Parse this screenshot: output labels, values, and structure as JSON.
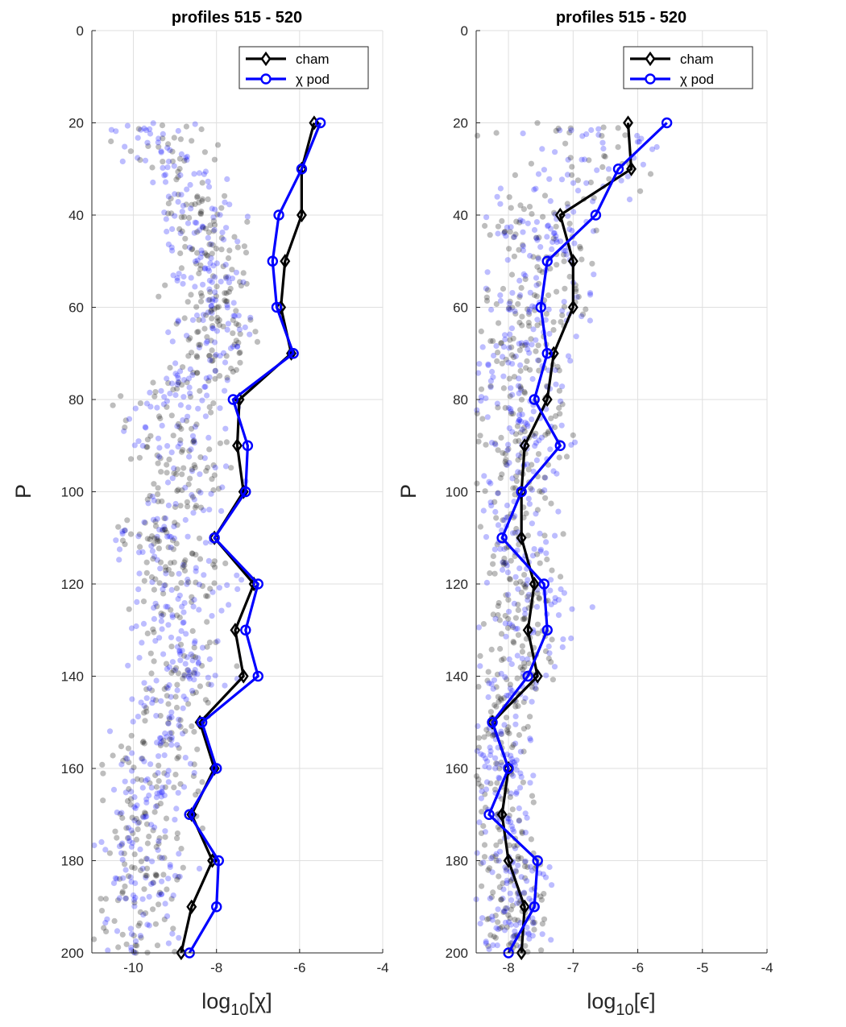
{
  "chart_data": [
    {
      "type": "line",
      "title": "profiles 515 - 520",
      "xlabel": {
        "base": "log",
        "sub": "10",
        "arg": "[χ]"
      },
      "ylabel": "P",
      "xlim": [
        -11,
        -4
      ],
      "ylim": [
        0,
        200
      ],
      "y_reversed": true,
      "grid": true,
      "legend_position": "top-right",
      "xticks": [
        -10,
        -8,
        -6,
        -4
      ],
      "yticks": [
        0,
        20,
        40,
        60,
        80,
        100,
        120,
        140,
        160,
        180,
        200
      ],
      "y": [
        20,
        30,
        40,
        50,
        60,
        70,
        80,
        90,
        100,
        110,
        120,
        130,
        140,
        150,
        160,
        170,
        180,
        190,
        200
      ],
      "series": [
        {
          "name": "cham",
          "color": "#000000",
          "marker": "diamond",
          "x": [
            -5.65,
            -5.95,
            -5.95,
            -6.35,
            -6.45,
            -6.2,
            -7.45,
            -7.5,
            -7.35,
            -8.05,
            -7.1,
            -7.55,
            -7.35,
            -8.4,
            -8.05,
            -8.6,
            -8.1,
            -8.6,
            -8.85
          ]
        },
        {
          "name": "χ pod",
          "color": "#0000ff",
          "marker": "circle",
          "x": [
            -5.5,
            -5.95,
            -6.5,
            -6.65,
            -6.55,
            -6.15,
            -7.6,
            -7.25,
            -7.3,
            -8.05,
            -7.0,
            -7.3,
            -7.0,
            -8.35,
            -8.0,
            -8.65,
            -7.95,
            -8.0,
            -8.65
          ]
        }
      ],
      "scatter_cloud": {
        "note_colors": [
          "#000000",
          "#0000ff"
        ],
        "band": [
          [
            20,
            -9.6,
            1.3
          ],
          [
            30,
            -8.9,
            1.3
          ],
          [
            40,
            -8.4,
            1.2
          ],
          [
            50,
            -8.2,
            1.1
          ],
          [
            60,
            -8.1,
            1.0
          ],
          [
            70,
            -7.9,
            1.0
          ],
          [
            80,
            -9.0,
            1.3
          ],
          [
            90,
            -9.0,
            1.3
          ],
          [
            100,
            -8.6,
            1.1
          ],
          [
            110,
            -9.5,
            1.2
          ],
          [
            120,
            -8.7,
            1.3
          ],
          [
            130,
            -9.0,
            1.1
          ],
          [
            140,
            -8.8,
            1.2
          ],
          [
            150,
            -9.2,
            1.1
          ],
          [
            160,
            -9.4,
            1.2
          ],
          [
            170,
            -9.8,
            1.2
          ],
          [
            180,
            -9.6,
            1.2
          ],
          [
            190,
            -9.9,
            1.1
          ],
          [
            200,
            -9.9,
            1.1
          ]
        ]
      }
    },
    {
      "type": "line",
      "title": "profiles 515 - 520",
      "xlabel": {
        "base": "log",
        "sub": "10",
        "arg": "[ϵ]"
      },
      "ylabel": "P",
      "xlim": [
        -8.5,
        -4
      ],
      "ylim": [
        0,
        200
      ],
      "y_reversed": true,
      "grid": true,
      "legend_position": "top-right",
      "xticks": [
        -8,
        -7,
        -6,
        -5,
        -4
      ],
      "yticks": [
        0,
        20,
        40,
        60,
        80,
        100,
        120,
        140,
        160,
        180,
        200
      ],
      "y": [
        20,
        30,
        40,
        50,
        60,
        70,
        80,
        90,
        100,
        110,
        120,
        130,
        140,
        150,
        160,
        170,
        180,
        190,
        200
      ],
      "series": [
        {
          "name": "cham",
          "color": "#000000",
          "marker": "diamond",
          "x": [
            -6.15,
            -6.1,
            -7.2,
            -7.0,
            -7.0,
            -7.3,
            -7.4,
            -7.75,
            -7.8,
            -7.8,
            -7.6,
            -7.7,
            -7.55,
            -8.25,
            -8.0,
            -8.1,
            -8.0,
            -7.75,
            -7.8
          ]
        },
        {
          "name": "χ pod",
          "color": "#0000ff",
          "marker": "circle",
          "x": [
            -5.55,
            -6.3,
            -6.65,
            -7.4,
            -7.5,
            -7.4,
            -7.6,
            -7.2,
            -7.8,
            -8.1,
            -7.45,
            -7.4,
            -7.7,
            -8.25,
            -8.0,
            -8.3,
            -7.55,
            -7.6,
            -8.0
          ]
        }
      ],
      "scatter_cloud": {
        "note_colors": [
          "#000000",
          "#0000ff"
        ],
        "band": [
          [
            20,
            -7.2,
            1.6
          ],
          [
            30,
            -7.0,
            1.6
          ],
          [
            40,
            -7.6,
            1.0
          ],
          [
            50,
            -7.5,
            1.0
          ],
          [
            60,
            -7.6,
            0.9
          ],
          [
            70,
            -7.8,
            0.8
          ],
          [
            80,
            -7.8,
            0.8
          ],
          [
            90,
            -7.8,
            0.8
          ],
          [
            100,
            -7.9,
            0.7
          ],
          [
            110,
            -7.9,
            0.7
          ],
          [
            120,
            -7.7,
            0.8
          ],
          [
            130,
            -7.8,
            0.8
          ],
          [
            140,
            -7.9,
            0.8
          ],
          [
            150,
            -8.1,
            0.5
          ],
          [
            160,
            -8.1,
            0.5
          ],
          [
            170,
            -8.1,
            0.5
          ],
          [
            180,
            -7.9,
            0.6
          ],
          [
            190,
            -7.9,
            0.6
          ],
          [
            200,
            -7.9,
            0.6
          ]
        ]
      }
    }
  ]
}
